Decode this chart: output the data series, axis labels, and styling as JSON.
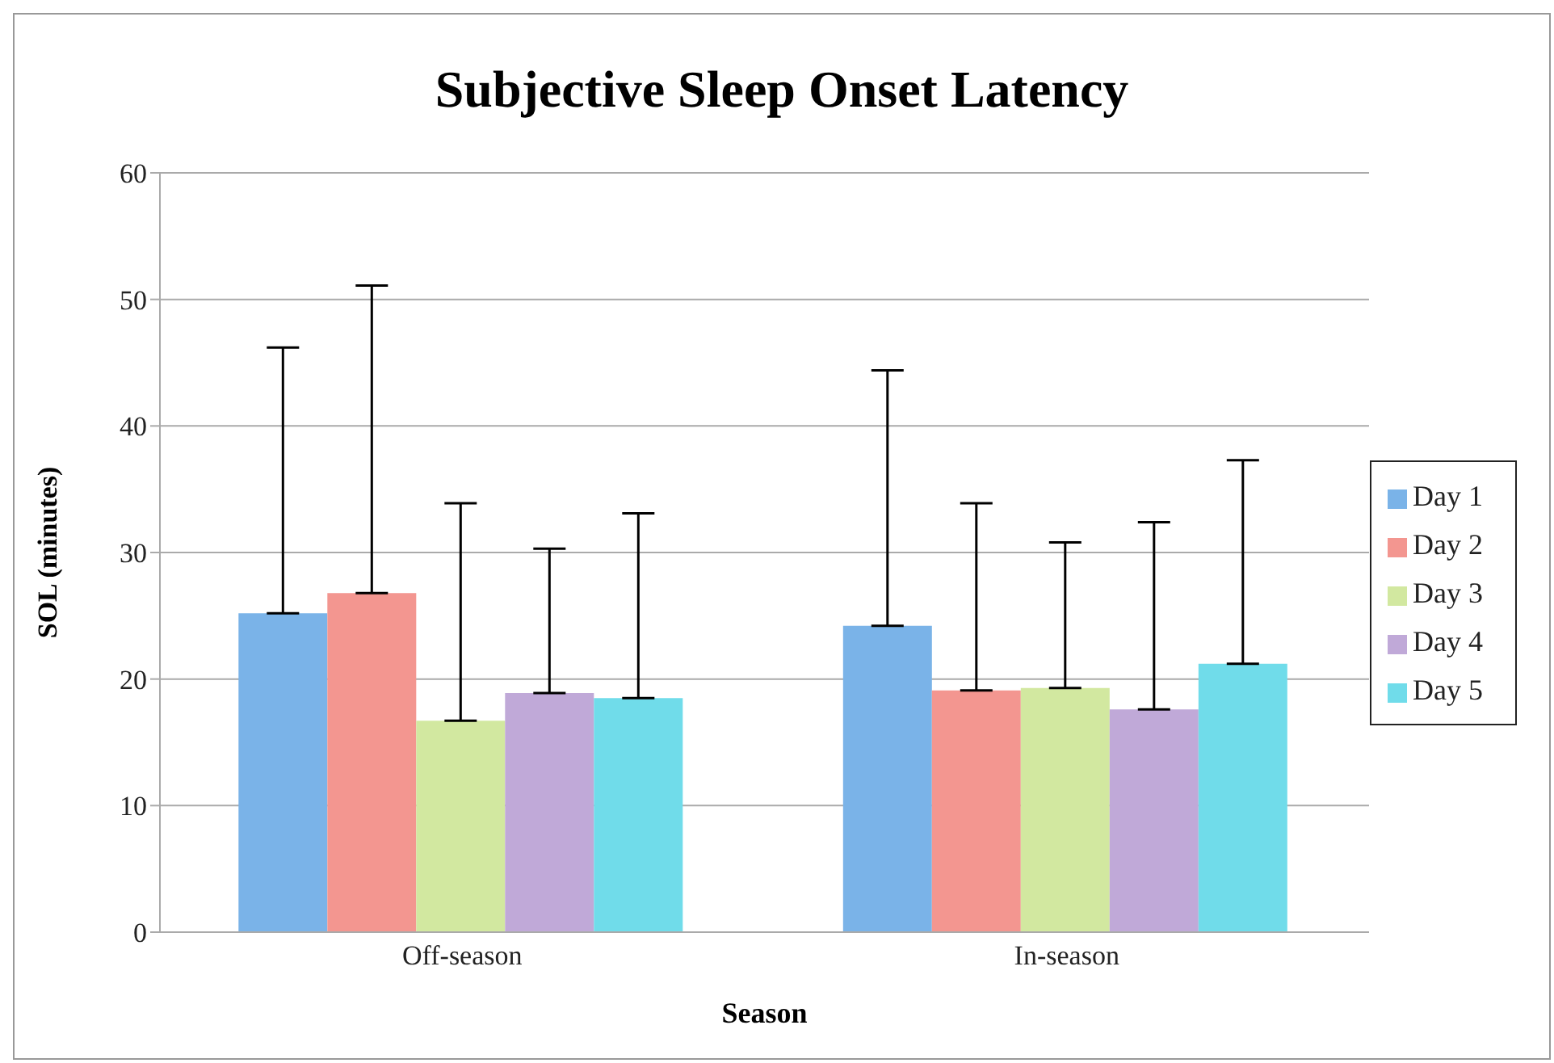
{
  "chart_data": {
    "type": "bar",
    "title": "Subjective Sleep Onset Latency",
    "xlabel": "Season",
    "ylabel": "SOL (minutes)",
    "categories": [
      "Off-season",
      "In-season"
    ],
    "series": [
      {
        "name": "Day 1",
        "color": "#7ab3e8",
        "values": [
          25.2,
          24.2
        ],
        "errors": [
          [
            25.2,
            46.2
          ],
          [
            24.2,
            44.4
          ]
        ]
      },
      {
        "name": "Day 2",
        "color": "#f39690",
        "values": [
          26.8,
          19.1
        ],
        "errors": [
          [
            26.8,
            51.1
          ],
          [
            19.1,
            33.9
          ]
        ]
      },
      {
        "name": "Day 3",
        "color": "#d2e8a0",
        "values": [
          16.7,
          19.3
        ],
        "errors": [
          [
            16.7,
            33.9
          ],
          [
            19.3,
            30.8
          ]
        ]
      },
      {
        "name": "Day 4",
        "color": "#c0a9d8",
        "values": [
          18.9,
          17.6
        ],
        "errors": [
          [
            18.9,
            30.3
          ],
          [
            17.6,
            32.4
          ]
        ]
      },
      {
        "name": "Day 5",
        "color": "#70dcea",
        "values": [
          18.5,
          21.2
        ],
        "errors": [
          [
            18.5,
            33.1
          ],
          [
            21.2,
            37.3
          ]
        ]
      }
    ],
    "ylim": [
      0,
      60
    ],
    "yticks": [
      0,
      10,
      20,
      30,
      40,
      50,
      60
    ],
    "grid": "y",
    "legend": "right"
  }
}
